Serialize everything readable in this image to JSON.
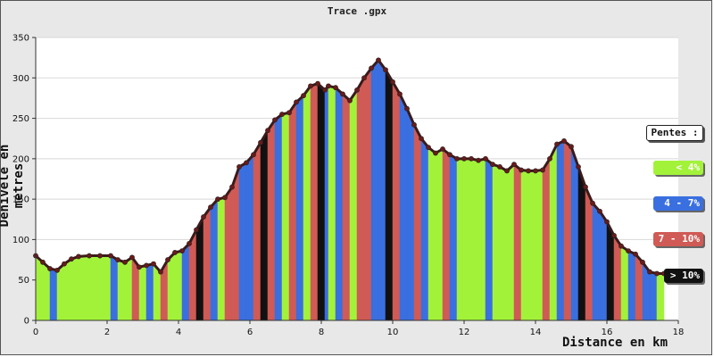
{
  "chart_data": {
    "type": "area",
    "title": "Trace .gpx",
    "xlabel": "Distance en km",
    "ylabel": "Dénivelé en metres",
    "xlim": [
      0,
      18
    ],
    "ylim": [
      0,
      350
    ],
    "xticks": [
      0,
      2,
      4,
      6,
      8,
      10,
      12,
      14,
      16,
      18
    ],
    "yticks": [
      0,
      50,
      100,
      150,
      200,
      250,
      300,
      350
    ],
    "grid": true,
    "legend_placement": "right",
    "legend_title": "Pentes :",
    "legend": [
      {
        "label": "< 4%",
        "color": "#a3f23a"
      },
      {
        "label": "4 - 7%",
        "color": "#3a6fe0"
      },
      {
        "label": "7 - 10%",
        "color": "#d05a55"
      },
      {
        "label": "> 10%",
        "color": "#111111"
      }
    ],
    "x": [
      0,
      0.2,
      0.4,
      0.6,
      0.8,
      1.0,
      1.2,
      1.5,
      1.8,
      2.1,
      2.3,
      2.5,
      2.7,
      2.9,
      3.1,
      3.3,
      3.5,
      3.7,
      3.9,
      4.1,
      4.3,
      4.5,
      4.7,
      4.9,
      5.1,
      5.3,
      5.5,
      5.7,
      5.9,
      6.1,
      6.3,
      6.5,
      6.7,
      6.9,
      7.1,
      7.3,
      7.5,
      7.7,
      7.9,
      8.1,
      8.2,
      8.4,
      8.6,
      8.8,
      9.0,
      9.2,
      9.4,
      9.6,
      9.8,
      10.0,
      10.2,
      10.4,
      10.6,
      10.8,
      11.0,
      11.2,
      11.4,
      11.6,
      11.8,
      12.0,
      12.2,
      12.4,
      12.6,
      12.8,
      13.0,
      13.2,
      13.4,
      13.6,
      13.8,
      14.0,
      14.2,
      14.4,
      14.6,
      14.8,
      15.0,
      15.2,
      15.4,
      15.6,
      15.8,
      16.0,
      16.2,
      16.4,
      16.6,
      16.8,
      17.0,
      17.2,
      17.4,
      17.6
    ],
    "y": [
      80,
      72,
      64,
      62,
      70,
      76,
      79,
      80,
      80,
      80,
      75,
      72,
      78,
      66,
      68,
      70,
      60,
      75,
      84,
      86,
      95,
      112,
      128,
      140,
      150,
      152,
      165,
      190,
      195,
      205,
      220,
      235,
      248,
      255,
      257,
      270,
      278,
      290,
      293,
      285,
      290,
      288,
      280,
      272,
      285,
      300,
      312,
      322,
      310,
      295,
      280,
      262,
      242,
      225,
      214,
      207,
      212,
      205,
      200,
      200,
      200,
      198,
      200,
      193,
      190,
      185,
      193,
      186,
      185,
      185,
      186,
      200,
      218,
      222,
      215,
      190,
      165,
      145,
      135,
      122,
      105,
      92,
      86,
      82,
      72,
      60,
      58,
      58
    ],
    "slope_classes": [
      0,
      0,
      1,
      0,
      0,
      0,
      0,
      0,
      0,
      1,
      0,
      0,
      2,
      0,
      1,
      0,
      2,
      0,
      0,
      1,
      2,
      3,
      2,
      1,
      0,
      2,
      2,
      1,
      1,
      2,
      3,
      2,
      1,
      0,
      2,
      1,
      0,
      2,
      3,
      1,
      0,
      1,
      2,
      0,
      2,
      2,
      1,
      1,
      3,
      2,
      1,
      1,
      2,
      1,
      0,
      0,
      2,
      1,
      0,
      0,
      0,
      0,
      1,
      0,
      0,
      0,
      2,
      0,
      0,
      0,
      2,
      0,
      1,
      2,
      1,
      3,
      2,
      1,
      1,
      3,
      2,
      0,
      1,
      2,
      1,
      1,
      0
    ]
  }
}
